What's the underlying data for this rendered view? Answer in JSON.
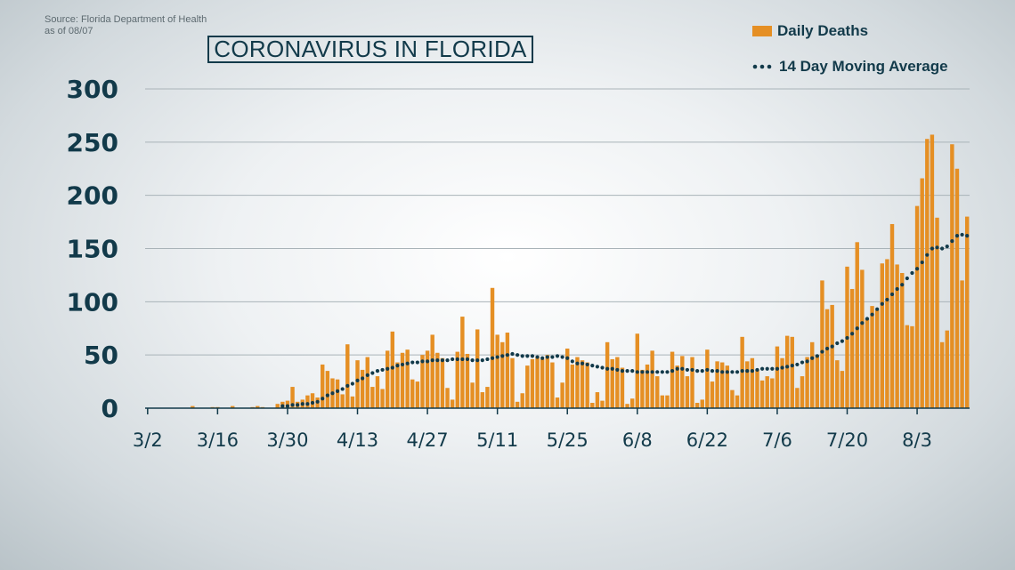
{
  "source_text": "Source: Florida Department of Health\nas of 08/07",
  "chart_data": {
    "type": "bar",
    "title": "CORONAVIRUS IN FLORIDA",
    "start_date": "2020-03-02",
    "end_date": "2020-08-07",
    "ylim": [
      0,
      300
    ],
    "yticks": [
      0,
      50,
      100,
      150,
      200,
      250,
      300
    ],
    "xtick_labels": [
      "3/2",
      "3/16",
      "3/30",
      "4/13",
      "4/27",
      "5/11",
      "5/25",
      "6/8",
      "6/22",
      "7/6",
      "7/20",
      "8/3"
    ],
    "grid": "horizontal",
    "legend_position": "top-right",
    "colors": {
      "bar": "#e58f24",
      "line": "#123a4a",
      "text": "#123a4a",
      "axis": "#123a4a"
    },
    "series": [
      {
        "name": "Daily Deaths",
        "type": "bar",
        "values": [
          0,
          0,
          0,
          0,
          0,
          0,
          0,
          0,
          0,
          2,
          0,
          0,
          0,
          1,
          1,
          0,
          0,
          2,
          0,
          0,
          0,
          1,
          2,
          1,
          0,
          0,
          4,
          6,
          7,
          20,
          6,
          8,
          12,
          14,
          10,
          41,
          35,
          28,
          27,
          13,
          60,
          11,
          45,
          36,
          48,
          20,
          30,
          18,
          54,
          72,
          43,
          52,
          55,
          27,
          25,
          50,
          54,
          69,
          52,
          47,
          19,
          8,
          53,
          86,
          51,
          24,
          74,
          15,
          20,
          113,
          69,
          62,
          71,
          47,
          6,
          14,
          40,
          46,
          48,
          46,
          50,
          43,
          10,
          24,
          56,
          41,
          48,
          45,
          43,
          5,
          15,
          7,
          62,
          46,
          48,
          38,
          4,
          9,
          70,
          36,
          41,
          54,
          30,
          12,
          12,
          53,
          40,
          49,
          30,
          48,
          5,
          8,
          55,
          25,
          44,
          43,
          40,
          17,
          12,
          67,
          44,
          47,
          36,
          26,
          30,
          28,
          58,
          47,
          68,
          67,
          19,
          30,
          48,
          62,
          50,
          120,
          93,
          97,
          45,
          35,
          133,
          112,
          156,
          130,
          84,
          96,
          92,
          136,
          140,
          173,
          135,
          127,
          78,
          77,
          190,
          216,
          253,
          257,
          179,
          62,
          73,
          248,
          225,
          120,
          180
        ]
      },
      {
        "name": "14 Day Moving Average",
        "type": "line",
        "values": [
          null,
          null,
          null,
          null,
          null,
          null,
          null,
          null,
          null,
          null,
          null,
          null,
          null,
          null,
          null,
          null,
          null,
          null,
          null,
          null,
          null,
          null,
          null,
          null,
          null,
          null,
          null,
          2,
          2,
          3,
          3,
          4,
          4,
          5,
          6,
          9,
          12,
          14,
          16,
          18,
          21,
          23,
          26,
          28,
          31,
          33,
          35,
          36,
          37,
          38,
          40,
          41,
          42,
          43,
          43,
          44,
          44,
          45,
          45,
          45,
          45,
          46,
          46,
          46,
          46,
          45,
          45,
          45,
          46,
          47,
          48,
          49,
          50,
          51,
          50,
          49,
          49,
          49,
          48,
          47,
          48,
          48,
          49,
          48,
          47,
          44,
          42,
          42,
          41,
          40,
          39,
          38,
          37,
          37,
          36,
          35,
          35,
          35,
          34,
          34,
          34,
          34,
          34,
          34,
          34,
          35,
          37,
          37,
          36,
          36,
          35,
          35,
          36,
          35,
          35,
          34,
          34,
          34,
          34,
          35,
          35,
          35,
          36,
          37,
          37,
          37,
          37,
          38,
          39,
          40,
          41,
          43,
          44,
          47,
          49,
          53,
          56,
          58,
          61,
          63,
          66,
          70,
          75,
          80,
          84,
          88,
          93,
          98,
          102,
          107,
          112,
          116,
          122,
          127,
          131,
          137,
          144,
          150,
          151,
          150,
          152,
          157,
          162,
          163,
          162
        ]
      }
    ]
  }
}
